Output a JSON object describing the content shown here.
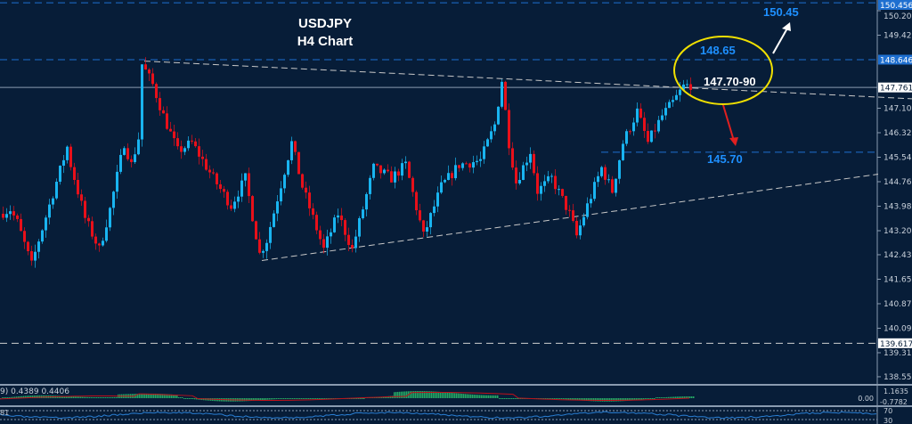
{
  "chart_data": {
    "type": "candlestick",
    "title": "USDJPY",
    "subtitle": "H4 Chart",
    "symbol": "USDJPY",
    "timeframe": "H4",
    "ylim": [
      138.2,
      150.55
    ],
    "y_ticks": [
      "150.205",
      "149.425",
      "147.100",
      "146.320",
      "145.540",
      "144.760",
      "143.980",
      "143.200",
      "142.435",
      "141.655",
      "140.875",
      "140.095",
      "139.315",
      "138.550"
    ],
    "price_labels": [
      {
        "value": "150.456",
        "color": "#1e90ff"
      },
      {
        "value": "148.646",
        "color": "#1e90ff"
      },
      {
        "value": "147.761",
        "color": "#ffffff"
      },
      {
        "value": "139.617",
        "color": "#ffffff"
      }
    ],
    "price_path": [
      [
        0,
        143.74
      ],
      [
        3,
        143.88
      ],
      [
        5,
        143.46
      ],
      [
        9,
        142.1
      ],
      [
        11,
        142.9
      ],
      [
        19,
        145.87
      ],
      [
        20,
        145.3
      ],
      [
        24,
        143.6
      ],
      [
        28,
        142.6
      ],
      [
        31,
        143.88
      ],
      [
        35,
        146.0
      ],
      [
        37,
        145.3
      ],
      [
        39,
        146.15
      ],
      [
        40,
        148.5
      ],
      [
        43,
        147.85
      ],
      [
        46,
        146.86
      ],
      [
        50,
        145.73
      ],
      [
        54,
        146.0
      ],
      [
        60,
        144.87
      ],
      [
        65,
        144.0
      ],
      [
        69,
        144.87
      ],
      [
        73,
        142.46
      ],
      [
        75,
        142.9
      ],
      [
        82,
        146.0
      ],
      [
        85,
        144.6
      ],
      [
        91,
        142.6
      ],
      [
        95,
        143.74
      ],
      [
        99,
        142.6
      ],
      [
        105,
        145.2
      ],
      [
        110,
        144.87
      ],
      [
        114,
        145.3
      ],
      [
        119,
        143.03
      ],
      [
        124,
        144.6
      ],
      [
        129,
        145.3
      ],
      [
        135,
        145.44
      ],
      [
        139,
        146.57
      ],
      [
        141,
        147.99
      ],
      [
        143,
        146.0
      ],
      [
        145,
        144.74
      ],
      [
        149,
        145.73
      ],
      [
        151,
        144.46
      ],
      [
        155,
        144.87
      ],
      [
        160,
        143.74
      ],
      [
        162,
        143.03
      ],
      [
        165,
        144.0
      ],
      [
        169,
        145.2
      ],
      [
        172,
        144.46
      ],
      [
        175,
        146.0
      ],
      [
        179,
        147.0
      ],
      [
        182,
        146.0
      ],
      [
        186,
        146.86
      ],
      [
        189,
        147.28
      ],
      [
        192,
        147.79
      ],
      [
        194,
        147.85
      ]
    ],
    "levels": [
      {
        "price": 148.646,
        "style": "dashed",
        "color": "#1e6fd0"
      },
      {
        "price": 147.761,
        "style": "solid",
        "color": "#8a9bb0"
      },
      {
        "price": 145.7,
        "style": "dashed",
        "color": "#1e6fd0"
      },
      {
        "price": 139.617,
        "style": "dashed",
        "color": "#d0d0d0"
      },
      {
        "price": 150.456,
        "style": "dashed",
        "color": "#1e6fd0"
      }
    ],
    "trendlines": [
      {
        "from": [
          40,
          148.6
        ],
        "to": [
          256,
          147.4
        ],
        "color": "#c8c8c8"
      },
      {
        "from": [
          73,
          142.25
        ],
        "to": [
          246,
          145.0
        ],
        "color": "#c8c8c8"
      }
    ],
    "annotations": {
      "target_up": "150.45",
      "resistance": "148.65",
      "zone": "147.70-90",
      "target_down": "145.70"
    },
    "colors": {
      "background": "#071d38",
      "bull": "#19b4f0",
      "bear": "#e8101a",
      "zone_circle": "#f0e000",
      "arrow_up": "#ffffff",
      "arrow_down": "#e02020",
      "label": "#1e90ff"
    },
    "indicator1": {
      "label": "9) 0.4389 0.4406",
      "ticks": [
        "1.1635",
        "0.00",
        "-0.7782"
      ],
      "histogram_color": "#2ecc71",
      "signal_color": "#c0101a"
    },
    "indicator2": {
      "label": "81",
      "ticks": [
        "70",
        "30"
      ],
      "line_color": "#2a7fd4"
    }
  }
}
